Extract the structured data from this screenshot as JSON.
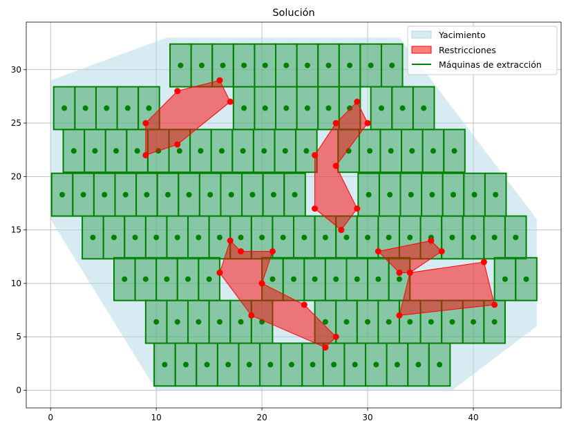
{
  "chart_data": {
    "type": "scatter",
    "title": "Solución",
    "xlabel": "",
    "ylabel": "",
    "xlim": [
      -2.3,
      48.3
    ],
    "ylim": [
      -1.65,
      34.45
    ],
    "xticks": [
      0,
      10,
      20,
      30,
      40
    ],
    "yticks": [
      0,
      5,
      10,
      15,
      20,
      25,
      30
    ],
    "grid": true,
    "legend": {
      "position": "top-right",
      "entries": [
        {
          "label": "Yacimiento",
          "kind": "patch",
          "face": "#add8e6",
          "edge": "#add8e6"
        },
        {
          "label": "Restricciones",
          "kind": "patch",
          "face": "#ff0000",
          "edge": "#ff0000"
        },
        {
          "label": "Máquinas de extracción",
          "kind": "line",
          "color": "#008000"
        }
      ]
    },
    "colors": {
      "deposit": "#add8e6",
      "restriction": "#ff0000",
      "restriction_points": "#ff0000",
      "machine_edge": "#008000",
      "machine_face": "#3aa35a",
      "machine_center": "#008000"
    },
    "deposit": [
      [
        0,
        29
      ],
      [
        11,
        33
      ],
      [
        33,
        33
      ],
      [
        46,
        16
      ],
      [
        46,
        6
      ],
      [
        38,
        0
      ],
      [
        10,
        0
      ],
      [
        0,
        16
      ]
    ],
    "restrictions": [
      [
        [
          9,
          25
        ],
        [
          12,
          28
        ],
        [
          16,
          29
        ],
        [
          17,
          27
        ],
        [
          12,
          23
        ],
        [
          9,
          22
        ]
      ],
      [
        [
          25,
          22
        ],
        [
          27,
          25
        ],
        [
          29,
          27
        ],
        [
          30,
          25
        ],
        [
          27,
          21
        ],
        [
          29,
          17
        ],
        [
          27.5,
          15
        ],
        [
          25,
          17
        ]
      ],
      [
        [
          16,
          11
        ],
        [
          17,
          14
        ],
        [
          18,
          13
        ],
        [
          21,
          13
        ],
        [
          20,
          10
        ],
        [
          24,
          8
        ],
        [
          27,
          5
        ],
        [
          26,
          4
        ],
        [
          19,
          7
        ]
      ],
      [
        [
          31,
          13
        ],
        [
          36,
          14
        ],
        [
          37,
          13
        ],
        [
          34,
          11
        ],
        [
          41,
          12
        ],
        [
          42,
          8
        ],
        [
          33,
          7
        ],
        [
          34,
          11
        ],
        [
          33,
          11
        ]
      ]
    ],
    "machine_size": {
      "width": 2,
      "height": 4
    },
    "machine_rows": [
      {
        "y": 30.4,
        "x": [
          12.3,
          14.3,
          16.3,
          18.3,
          20.3,
          22.3,
          24.3,
          26.3,
          28.3,
          30.3,
          32.3
        ]
      },
      {
        "y": 26.4,
        "x": [
          1.3,
          3.3,
          5.3,
          7.3,
          9.3,
          18.3,
          20.3,
          22.3,
          24.3,
          26.3,
          28.3,
          31.3,
          33.3,
          35.3
        ]
      },
      {
        "y": 22.4,
        "x": [
          2.2,
          4.2,
          6.2,
          8.2,
          10.2,
          12.2,
          14.2,
          16.2,
          18.2,
          20.2,
          22.2,
          24.2,
          28.2,
          30.2,
          32.2,
          34.2,
          36.2,
          38.2
        ]
      },
      {
        "y": 18.3,
        "x": [
          1.1,
          3.1,
          5.1,
          7.1,
          9.1,
          11.1,
          13.1,
          15.1,
          17.1,
          19.1,
          21.1,
          23.1,
          30.1,
          32.1,
          34.1,
          36.1,
          38.1,
          40.1,
          42.1
        ]
      },
      {
        "y": 14.3,
        "x": [
          4.0,
          6.0,
          8.0,
          10.0,
          12.0,
          14.0,
          16.0,
          18.0,
          20.0,
          22.0,
          24.0,
          26.0,
          28.0,
          30.0,
          32.0,
          34.0,
          36.0,
          38.0,
          40.0,
          42.0,
          44.0
        ]
      },
      {
        "y": 10.4,
        "x": [
          7.0,
          9.0,
          11.0,
          13.0,
          15.0,
          21.0,
          23.0,
          25.0,
          27.0,
          29.0,
          31.0,
          33.0,
          43.0,
          45.0
        ]
      },
      {
        "y": 6.4,
        "x": [
          10.0,
          12.0,
          14.0,
          16.0,
          18.0,
          20.0,
          26.0,
          28.0,
          30.0,
          32.0,
          34.0,
          36.0,
          38.0,
          40.0,
          42.0
        ]
      },
      {
        "y": 2.4,
        "x": [
          10.8,
          12.8,
          14.8,
          16.8,
          18.8,
          20.8,
          22.8,
          24.8,
          26.8,
          28.8,
          30.8,
          32.8,
          34.8,
          36.8
        ]
      }
    ]
  }
}
